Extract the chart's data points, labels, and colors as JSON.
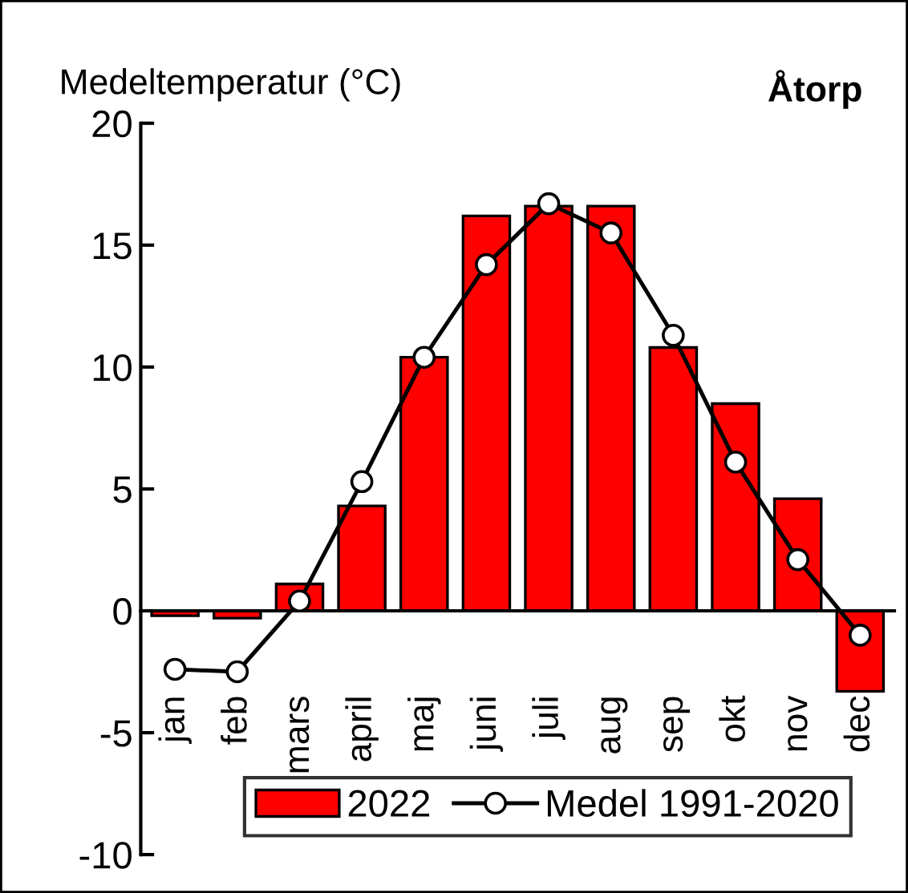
{
  "chart_data": {
    "type": "bar",
    "title": "Åtorp",
    "ylabel": "Medeltemperatur (°C)",
    "categories": [
      "jan",
      "feb",
      "mars",
      "april",
      "maj",
      "juni",
      "juli",
      "aug",
      "sep",
      "okt",
      "nov",
      "dec"
    ],
    "series": [
      {
        "name": "2022",
        "color": "#ff0000",
        "values": [
          -0.2,
          -0.3,
          1.1,
          4.3,
          10.4,
          16.2,
          16.6,
          16.6,
          10.8,
          8.5,
          4.6,
          -3.3
        ]
      },
      {
        "name": "Medel 1991-2020",
        "type": "line",
        "color": "#000000",
        "marker": "circle",
        "line_style": "solid",
        "values": [
          -2.4,
          -2.5,
          0.4,
          5.3,
          10.4,
          14.2,
          16.7,
          15.5,
          11.3,
          6.1,
          2.1,
          -1.0
        ]
      }
    ],
    "ylim": [
      -10,
      20
    ],
    "yticks": [
      -10,
      -5,
      0,
      5,
      10,
      15,
      20
    ],
    "grid": false,
    "legend": "bottom"
  }
}
